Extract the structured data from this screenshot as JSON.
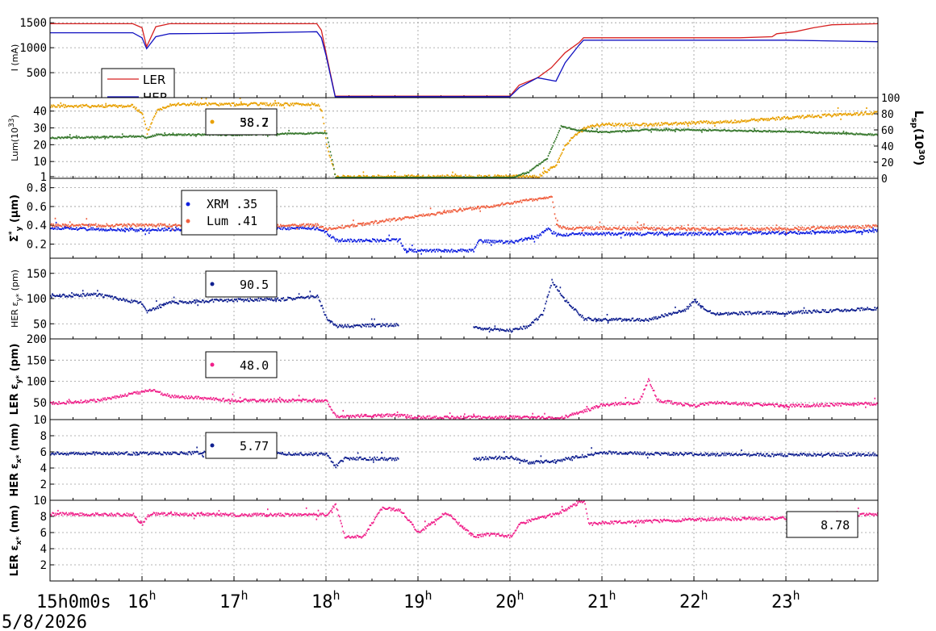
{
  "date_label": "5/8/2026",
  "x_axis": {
    "first_tick_label": "15h0m0s",
    "hour_ticks": [
      {
        "h": 15,
        "main": "15",
        "sup": ""
      },
      {
        "h": 16,
        "main": "16",
        "sup": "h"
      },
      {
        "h": 17,
        "main": "17",
        "sup": "h"
      },
      {
        "h": 18,
        "main": "18",
        "sup": "h"
      },
      {
        "h": 19,
        "main": "19",
        "sup": "h"
      },
      {
        "h": 20,
        "main": "20",
        "sup": "h"
      },
      {
        "h": 21,
        "main": "21",
        "sup": "h"
      },
      {
        "h": 22,
        "main": "22",
        "sup": "h"
      },
      {
        "h": 23,
        "main": "23",
        "sup": "h"
      }
    ],
    "range_hours": [
      15,
      24
    ]
  },
  "panels": [
    {
      "id": "current",
      "ylabel": "I (mA)",
      "ylim": [
        0,
        1600
      ],
      "yticks": [
        "500",
        "1000",
        "1500"
      ],
      "ytick_values": [
        500,
        1000,
        1500
      ],
      "legend": [
        {
          "name": "LER",
          "color": "#d62020"
        },
        {
          "name": "HER",
          "color": "#1010c0"
        }
      ]
    },
    {
      "id": "luminosity",
      "ylabel": "Lum(10",
      "ylabel_sup": "33",
      "ylabel_tail": ")",
      "ylim": [
        0,
        48
      ],
      "yticks": [
        "1",
        "10",
        "20",
        "30",
        "40"
      ],
      "ytick_values": [
        1,
        10,
        20,
        30,
        40
      ],
      "right_ylabel": "L",
      "right_ylabel_sub": "sp",
      "right_ylabel_tail": "(10",
      "right_ylabel_sup": "30",
      "right_ylabel_end": ")",
      "right_yticks": [
        "0",
        "20",
        "40",
        "60",
        "80",
        "100"
      ],
      "right_ytick_values": [
        0,
        20,
        40,
        60,
        80,
        100
      ],
      "legend_values": [
        "38.2",
        "58.7"
      ],
      "colors": {
        "lum": "#e8a000",
        "lsp": "#3a7a30"
      }
    },
    {
      "id": "sigma_y",
      "ylabel": "Σ",
      "ylabel_sub": "y",
      "ylabel_sup": "*",
      "ylabel_tail": " (μm)",
      "ylim": [
        0.05,
        0.9
      ],
      "yticks": [
        "0.2",
        "0.4",
        "0.6",
        "0.8"
      ],
      "ytick_values": [
        0.2,
        0.4,
        0.6,
        0.8
      ],
      "legend": [
        {
          "name": "XRM",
          "value": ".35",
          "color": "#1020e0"
        },
        {
          "name": "Lum",
          "value": ".41",
          "color": "#f06040"
        }
      ]
    },
    {
      "id": "her_emit_y",
      "ylabel": "HER ε",
      "ylabel_sub": "y*",
      "ylabel_tail": " (pm)",
      "ylim": [
        20,
        180
      ],
      "yticks": [
        "50",
        "100",
        "150"
      ],
      "ytick_values": [
        50,
        100,
        150
      ],
      "legend_value": "90.5",
      "color": "#102090"
    },
    {
      "id": "ler_emit_y",
      "ylabel": "LER ε",
      "ylabel_sub": "y*",
      "ylabel_tail": " (pm)",
      "ylim": [
        10,
        200
      ],
      "yticks": [
        "10",
        "50",
        "100",
        "150",
        "200"
      ],
      "ytick_values": [
        10,
        50,
        100,
        150,
        200
      ],
      "legend_value": "48.0",
      "color": "#f0208a"
    },
    {
      "id": "her_emit_x",
      "ylabel": "HER ε",
      "ylabel_sub": "x*",
      "ylabel_tail": " (nm)",
      "ylim": [
        0,
        10
      ],
      "yticks": [
        "2",
        "4",
        "6",
        "8"
      ],
      "ytick_values": [
        2,
        4,
        6,
        8
      ],
      "legend_value": "5.77",
      "color": "#102090"
    },
    {
      "id": "ler_emit_x",
      "ylabel": "LER ε",
      "ylabel_sub": "x*",
      "ylabel_tail": " (nm)",
      "ylim": [
        0,
        10
      ],
      "yticks": [
        "2",
        "4",
        "6",
        "8",
        "10"
      ],
      "ytick_values": [
        2,
        4,
        6,
        8,
        10
      ],
      "legend_value": "8.78",
      "color": "#f0208a"
    }
  ],
  "chart_data": {
    "type": "scatter",
    "x_unit": "hour of day (5/8/2026)",
    "series": [
      {
        "panel": "current",
        "name": "LER",
        "x": [
          15.0,
          15.9,
          16.0,
          16.05,
          16.15,
          16.3,
          17.0,
          17.9,
          17.95,
          18.0,
          18.1,
          18.3,
          19.0,
          20.0,
          20.1,
          20.3,
          20.45,
          20.6,
          20.75,
          20.8,
          21.0,
          21.5,
          22.0,
          22.5,
          22.85,
          22.9,
          23.1,
          23.3,
          23.5,
          24.0
        ],
        "y": [
          1480,
          1480,
          1400,
          1020,
          1420,
          1480,
          1480,
          1480,
          1350,
          900,
          30,
          30,
          30,
          30,
          250,
          400,
          600,
          900,
          1100,
          1200,
          1200,
          1200,
          1200,
          1200,
          1220,
          1280,
          1320,
          1400,
          1460,
          1480
        ]
      },
      {
        "panel": "current",
        "name": "HER",
        "x": [
          15.0,
          15.9,
          16.0,
          16.05,
          16.15,
          16.3,
          17.0,
          17.9,
          17.95,
          18.0,
          18.1,
          18.3,
          19.0,
          20.0,
          20.1,
          20.3,
          20.5,
          20.6,
          20.75,
          20.8,
          21.0,
          22.0,
          23.0,
          24.0
        ],
        "y": [
          1300,
          1300,
          1200,
          980,
          1220,
          1280,
          1290,
          1320,
          1200,
          850,
          20,
          20,
          20,
          20,
          200,
          400,
          330,
          700,
          1050,
          1150,
          1150,
          1150,
          1150,
          1120
        ]
      },
      {
        "panel": "luminosity",
        "name": "Lum",
        "x": [
          15.0,
          15.9,
          16.0,
          16.05,
          16.15,
          16.3,
          17.0,
          17.9,
          17.95,
          18.0,
          18.1,
          19.0,
          20.0,
          20.3,
          20.5,
          20.6,
          20.75,
          20.85,
          21.0,
          21.5,
          22.0,
          22.5,
          23.0,
          24.0
        ],
        "y": [
          43,
          43,
          38,
          27,
          40,
          44,
          44,
          44,
          40,
          20,
          1,
          1,
          1,
          1,
          8,
          20,
          28,
          31,
          32,
          32,
          33,
          34,
          36,
          39
        ]
      },
      {
        "panel": "luminosity",
        "name": "Lsp",
        "x": [
          15.0,
          16.0,
          16.05,
          16.15,
          17.0,
          18.0,
          18.1,
          19.0,
          20.0,
          20.2,
          20.4,
          20.55,
          20.7,
          21.0,
          21.5,
          22.0,
          23.0,
          24.0
        ],
        "y": [
          50,
          52,
          50,
          54,
          54,
          56,
          0,
          0,
          0,
          8,
          25,
          65,
          60,
          57,
          60,
          60,
          58,
          54
        ]
      },
      {
        "panel": "sigma_y",
        "name": "XRM",
        "x": [
          15.0,
          16.0,
          17.0,
          17.9,
          18.0,
          18.1,
          18.8,
          18.85,
          19.6,
          19.65,
          20.0,
          20.3,
          20.4,
          20.5,
          21.0,
          22.0,
          23.0,
          24.0
        ],
        "y": [
          0.37,
          0.35,
          0.37,
          0.37,
          0.32,
          0.24,
          0.24,
          0.13,
          0.13,
          0.23,
          0.22,
          0.28,
          0.36,
          0.3,
          0.31,
          0.31,
          0.32,
          0.34
        ]
      },
      {
        "panel": "sigma_y",
        "name": "Lum",
        "x": [
          15.0,
          16.0,
          17.0,
          17.9,
          18.0,
          20.45,
          20.5,
          20.6,
          21.0,
          22.0,
          23.0,
          24.0
        ],
        "y": [
          0.4,
          0.4,
          0.4,
          0.4,
          0.36,
          0.7,
          0.4,
          0.36,
          0.37,
          0.36,
          0.36,
          0.39
        ]
      },
      {
        "panel": "her_emit_y",
        "name": "HER εy*",
        "x": [
          15.0,
          15.5,
          16.0,
          16.05,
          16.3,
          17.0,
          17.5,
          17.9,
          18.0,
          18.1,
          18.8,
          19.6,
          20.0,
          20.2,
          20.35,
          20.45,
          20.6,
          20.8,
          21.0,
          21.5,
          21.9,
          22.0,
          22.2,
          23.0,
          24.0
        ],
        "y": [
          105,
          108,
          90,
          75,
          92,
          97,
          98,
          105,
          62,
          45,
          48,
          42,
          36,
          45,
          70,
          135,
          95,
          60,
          58,
          58,
          78,
          95,
          70,
          72,
          80
        ]
      },
      {
        "panel": "ler_emit_y",
        "name": "LER εy*",
        "x": [
          15.0,
          15.5,
          16.0,
          16.1,
          16.3,
          17.0,
          18.0,
          18.1,
          18.8,
          19.0,
          20.0,
          20.4,
          20.5,
          20.8,
          21.0,
          21.4,
          21.5,
          21.6,
          22.0,
          22.2,
          23.0,
          24.0
        ],
        "y": [
          48,
          55,
          75,
          80,
          65,
          55,
          55,
          18,
          20,
          15,
          15,
          14,
          10,
          30,
          45,
          50,
          105,
          55,
          42,
          50,
          42,
          48
        ]
      },
      {
        "panel": "her_emit_x",
        "name": "HER εx*",
        "x": [
          15.0,
          16.0,
          17.0,
          18.0,
          18.1,
          18.2,
          18.8,
          19.6,
          19.7,
          20.0,
          20.2,
          20.5,
          20.8,
          21.0,
          22.0,
          23.0,
          24.0
        ],
        "y": [
          5.8,
          5.8,
          5.9,
          5.7,
          4.2,
          5.2,
          5.1,
          5.0,
          5.2,
          5.3,
          4.7,
          4.9,
          5.5,
          5.9,
          5.7,
          5.6,
          5.7
        ]
      },
      {
        "panel": "ler_emit_x",
        "name": "LER εx*",
        "x": [
          15.0,
          15.9,
          16.0,
          16.05,
          16.1,
          17.0,
          18.0,
          18.1,
          18.2,
          18.4,
          18.6,
          18.8,
          19.0,
          19.3,
          19.6,
          19.8,
          20.0,
          20.1,
          20.2,
          20.5,
          20.8,
          20.85,
          21.0,
          22.0,
          23.0,
          24.0
        ],
        "y": [
          8.3,
          8.2,
          7.0,
          8.0,
          8.3,
          8.2,
          8.2,
          9.5,
          5.5,
          5.5,
          9.0,
          8.8,
          6.0,
          8.5,
          5.5,
          5.8,
          5.5,
          7.0,
          7.5,
          8.3,
          10.0,
          7.0,
          7.2,
          7.6,
          7.8,
          8.3
        ]
      }
    ]
  }
}
